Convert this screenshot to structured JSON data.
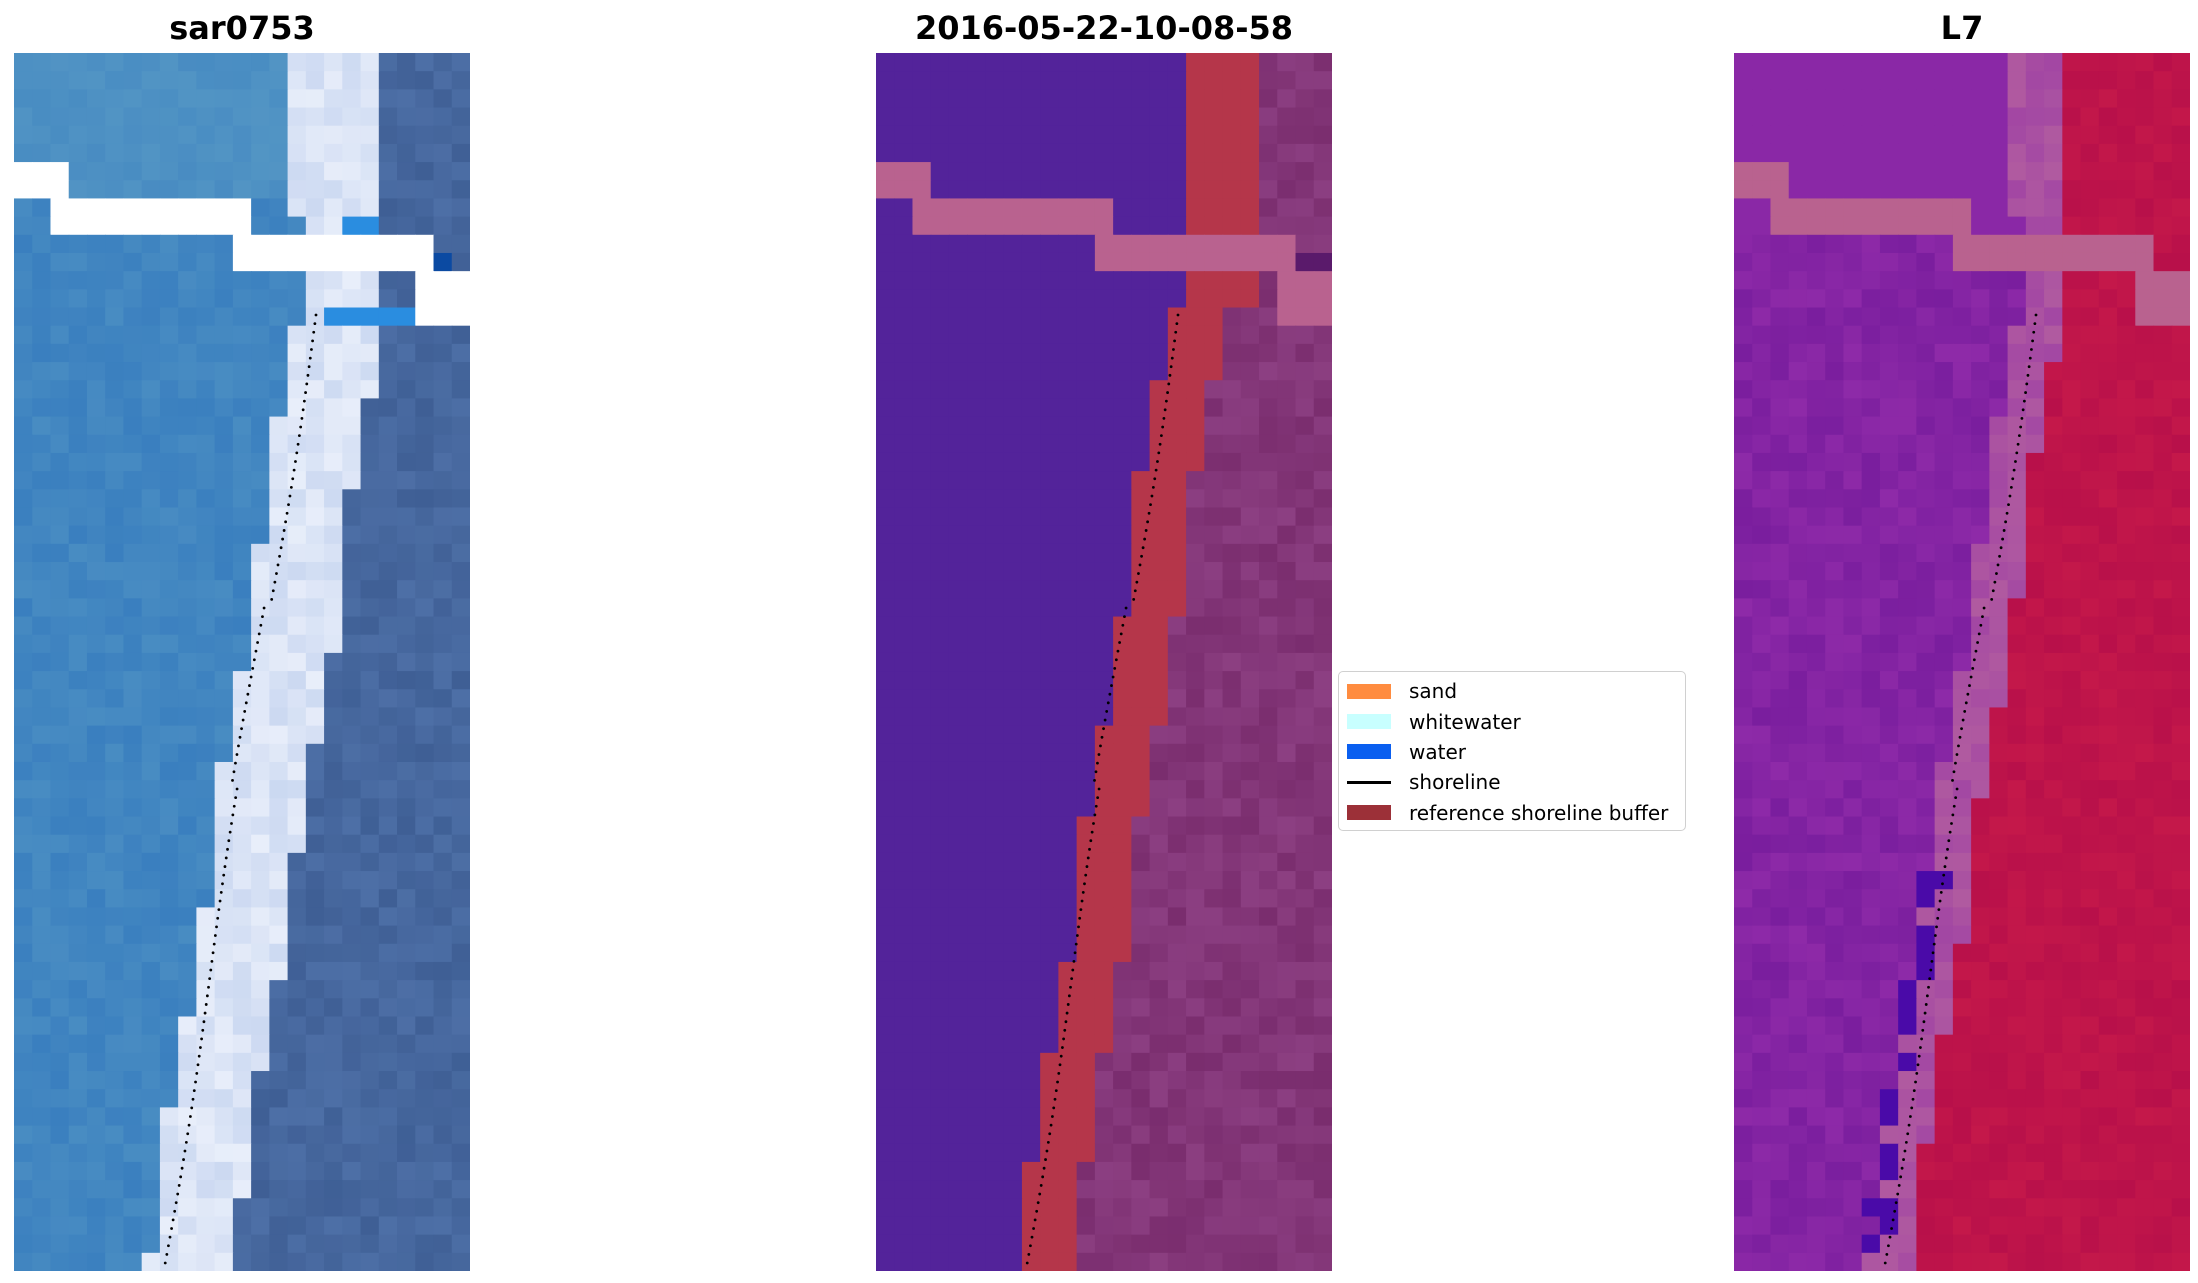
{
  "figure": {
    "panels": [
      {
        "title": "sar0753",
        "colors": {
          "offshore": "#3a7fbf",
          "offshore_alt": "#2f74b5",
          "nearshore": "#5a9cc6",
          "whitewater": "#e8eefa",
          "whitewater_alt": "#c8d6f0",
          "land": "#4d6fa6",
          "land_alt": "#3f5f95",
          "nodata": "#ffffff",
          "bright_water": "#2a8de0",
          "deep_blue": "#0b4aa2"
        }
      },
      {
        "title": "2016-05-22-10-08-58",
        "colors": {
          "water_class": "#53239a",
          "buffer": "#b5364a",
          "land": "#7a2d6e",
          "land_alt": "#8c3f82",
          "cloud_strip": "#b9628f",
          "dark_corner": "#5a1a6b"
        }
      },
      {
        "title": "L7",
        "colors": {
          "water_index": "#7a1e9e",
          "water_index_alt": "#8e2aa8",
          "transition": "#b05aa0",
          "land_index": "#c4184a",
          "land_index_alt": "#b8104a",
          "cloud_strip": "#b9628f",
          "dark_pixel": "#4a0aa8"
        }
      }
    ]
  },
  "legend": {
    "items": [
      {
        "label": "sand",
        "type": "patch",
        "color": "#ff8c40"
      },
      {
        "label": "whitewater",
        "type": "patch",
        "color": "#c8ffff"
      },
      {
        "label": "water",
        "type": "patch",
        "color": "#0a5ff0"
      },
      {
        "label": "shoreline",
        "type": "line",
        "color": "#000000"
      },
      {
        "label": "reference shoreline buffer",
        "type": "patch",
        "color": "#9c3038"
      }
    ]
  }
}
